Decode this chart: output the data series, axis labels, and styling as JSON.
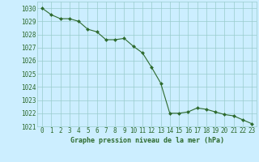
{
  "x": [
    0,
    1,
    2,
    3,
    4,
    5,
    6,
    7,
    8,
    9,
    10,
    11,
    12,
    13,
    14,
    15,
    16,
    17,
    18,
    19,
    20,
    21,
    22,
    23
  ],
  "y": [
    1030.0,
    1029.5,
    1029.2,
    1029.2,
    1029.0,
    1028.4,
    1028.2,
    1027.6,
    1027.6,
    1027.7,
    1027.1,
    1026.6,
    1025.5,
    1024.3,
    1022.0,
    1022.0,
    1022.1,
    1022.4,
    1022.3,
    1022.1,
    1021.9,
    1021.8,
    1021.5,
    1021.2
  ],
  "line_color": "#2d6a2d",
  "marker": "D",
  "marker_size": 2.0,
  "line_width": 0.8,
  "bg_color": "#cceeff",
  "grid_color": "#99cccc",
  "xlabel": "Graphe pression niveau de la mer (hPa)",
  "xlabel_color": "#2d6a2d",
  "xlabel_fontsize": 6.0,
  "tick_color": "#2d6a2d",
  "tick_fontsize": 5.5,
  "ylim": [
    1021,
    1030.5
  ],
  "xlim": [
    -0.5,
    23.5
  ],
  "yticks": [
    1021,
    1022,
    1023,
    1024,
    1025,
    1026,
    1027,
    1028,
    1029,
    1030
  ],
  "xticks": [
    0,
    1,
    2,
    3,
    4,
    5,
    6,
    7,
    8,
    9,
    10,
    11,
    12,
    13,
    14,
    15,
    16,
    17,
    18,
    19,
    20,
    21,
    22,
    23
  ]
}
